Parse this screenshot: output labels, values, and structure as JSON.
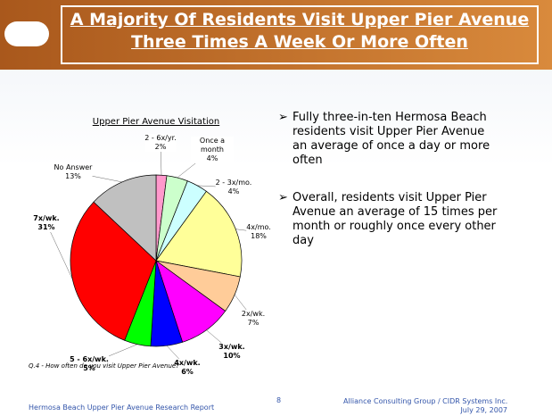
{
  "slide_title": "A Majority Of Residents Visit Upper Pier Avenue Three Times A Week Or More Often",
  "chart_data": {
    "type": "pie",
    "title": "Upper Pier Avenue Visitation",
    "categories": [
      "2 - 6x/yr.",
      "Once a month",
      "2 - 3x/mo.",
      "4x/mo.",
      "2x/wk.",
      "3x/wk.",
      "4x/wk.",
      "5 - 6x/wk.",
      "7x/wk.",
      "No Answer"
    ],
    "values": [
      2,
      4,
      4,
      18,
      7,
      10,
      6,
      5,
      31,
      13
    ],
    "value_labels": [
      "2%",
      "4%",
      "4%",
      "18%",
      "7%",
      "10%",
      "6%",
      "5%",
      "31%",
      "13%"
    ],
    "colors": [
      "#ff99cc",
      "#ccffcc",
      "#ccffff",
      "#ffff99",
      "#ffcc99",
      "#ff00ff",
      "#0000ff",
      "#00ff00",
      "#ff0000",
      "#c0c0c0"
    ]
  },
  "bullets": [
    "Fully three-in-ten Hermosa Beach residents visit Upper Pier Avenue an average of once a day or more often",
    "Overall, residents visit Upper Pier Avenue an average of 15 times per month or roughly once every other day"
  ],
  "footnote": "Q.4 - How often do you visit Upper Pier Avenue?",
  "footer_left": "Hermosa Beach Upper Pier Avenue Research Report",
  "page_number": 8,
  "footer_right": [
    "Alliance Consulting Group / CIDR Systems Inc.",
    "July 29, 2007"
  ]
}
